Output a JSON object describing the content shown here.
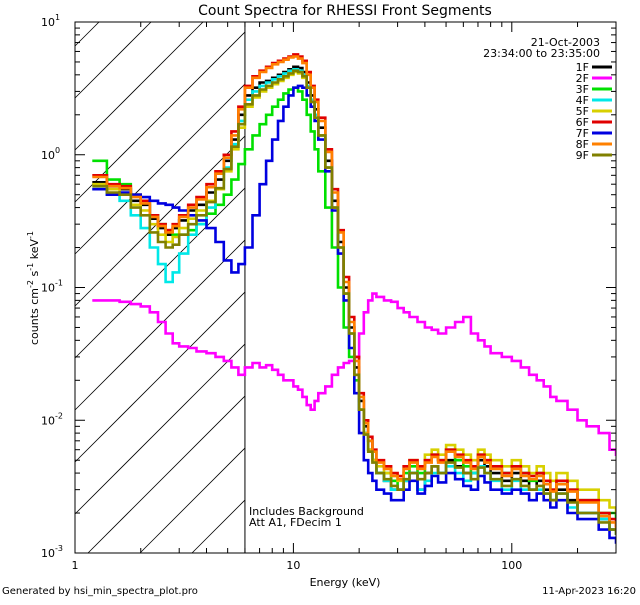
{
  "chart_data": {
    "type": "line",
    "title": "Count Spectra for RHESSI Front Segments",
    "xlabel": "Energy (keV)",
    "ylabel_base": "counts cm",
    "ylabel_exp1": "-2",
    "ylabel_mid": " s",
    "ylabel_exp2": "-1",
    "ylabel_end": " keV",
    "ylabel_exp3": "-1",
    "xscale": "log",
    "yscale": "log",
    "xlim": [
      1,
      300
    ],
    "ylim": [
      0.001,
      10
    ],
    "x_tick_labels": [
      {
        "value": 1,
        "label": "1"
      },
      {
        "value": 10,
        "label": "10"
      },
      {
        "value": 100,
        "label": "100"
      }
    ],
    "y_tick_labels": [
      {
        "value": 0.001,
        "base": "10",
        "exp": "-3"
      },
      {
        "value": 0.01,
        "base": "10",
        "exp": "-2"
      },
      {
        "value": 0.1,
        "base": "10",
        "exp": "-1"
      },
      {
        "value": 1,
        "base": "10",
        "exp": "0"
      },
      {
        "value": 10,
        "base": "10",
        "exp": "1"
      }
    ],
    "header_lines": [
      "21-Oct-2003",
      "23:34:00 to 23:35:00"
    ],
    "annotations": [
      "Includes Background",
      "Att A1, FDecim 1"
    ],
    "shaded_region": {
      "x_from": 1,
      "x_to": 6,
      "style": "diagonal hatch"
    },
    "vertical_line_x": 6,
    "legend_position": "top-right",
    "series": [
      {
        "name": "1F",
        "color": "#000000"
      },
      {
        "name": "2F",
        "color": "#ff00ff"
      },
      {
        "name": "3F",
        "color": "#00e000"
      },
      {
        "name": "4F",
        "color": "#00e8e8"
      },
      {
        "name": "5F",
        "color": "#d8d000"
      },
      {
        "name": "6F",
        "color": "#e00000"
      },
      {
        "name": "7F",
        "color": "#0000e0"
      },
      {
        "name": "8F",
        "color": "#ff8000"
      },
      {
        "name": "9F",
        "color": "#808000"
      }
    ],
    "energy_bins_keV": [
      1.2,
      1.4,
      1.6,
      1.8,
      2.0,
      2.2,
      2.4,
      2.6,
      2.8,
      3.0,
      3.3,
      3.6,
      4.0,
      4.4,
      4.8,
      5.2,
      5.6,
      6.0,
      6.5,
      7.0,
      7.5,
      8.0,
      8.5,
      9.0,
      9.5,
      10,
      10.5,
      11,
      11.5,
      12,
      12.5,
      13,
      14,
      15,
      16,
      17,
      18,
      19,
      20,
      21,
      22,
      23,
      24,
      26,
      28,
      30,
      32,
      34,
      37,
      40,
      43,
      46,
      50,
      55,
      60,
      65,
      70,
      75,
      80,
      90,
      100,
      110,
      120,
      130,
      140,
      150,
      160,
      180,
      200,
      220,
      250,
      280,
      300
    ],
    "series_values": {
      "1F": [
        0.62,
        0.55,
        0.55,
        0.45,
        0.42,
        0.33,
        0.28,
        0.25,
        0.28,
        0.32,
        0.38,
        0.42,
        0.52,
        0.65,
        0.9,
        1.3,
        2.0,
        2.8,
        3.2,
        3.5,
        3.6,
        3.8,
        4.0,
        4.2,
        4.4,
        4.6,
        4.5,
        4.2,
        3.5,
        2.8,
        2.2,
        1.6,
        0.9,
        0.45,
        0.22,
        0.1,
        0.05,
        0.025,
        0.014,
        0.009,
        0.007,
        0.005,
        0.004,
        0.0035,
        0.003,
        0.003,
        0.0035,
        0.004,
        0.003,
        0.004,
        0.0045,
        0.004,
        0.005,
        0.0045,
        0.004,
        0.004,
        0.005,
        0.0045,
        0.004,
        0.0035,
        0.004,
        0.0035,
        0.003,
        0.0035,
        0.003,
        0.0025,
        0.003,
        0.0025,
        0.002,
        0.002,
        0.0018,
        0.0015,
        0.0015
      ],
      "2F": [
        0.08,
        0.08,
        0.078,
        0.075,
        0.072,
        0.065,
        0.055,
        0.045,
        0.038,
        0.036,
        0.035,
        0.033,
        0.032,
        0.03,
        0.028,
        0.025,
        0.022,
        0.025,
        0.027,
        0.025,
        0.026,
        0.024,
        0.022,
        0.02,
        0.02,
        0.018,
        0.017,
        0.015,
        0.013,
        0.012,
        0.014,
        0.016,
        0.018,
        0.022,
        0.025,
        0.027,
        0.028,
        0.03,
        0.045,
        0.065,
        0.08,
        0.09,
        0.085,
        0.08,
        0.078,
        0.07,
        0.065,
        0.06,
        0.055,
        0.05,
        0.048,
        0.045,
        0.05,
        0.055,
        0.06,
        0.045,
        0.04,
        0.036,
        0.032,
        0.03,
        0.028,
        0.025,
        0.022,
        0.02,
        0.018,
        0.015,
        0.014,
        0.012,
        0.01,
        0.009,
        0.008,
        0.006,
        0.0055
      ],
      "3F": [
        0.9,
        0.65,
        0.6,
        0.5,
        0.45,
        0.35,
        0.3,
        0.27,
        0.25,
        0.25,
        0.27,
        0.3,
        0.36,
        0.42,
        0.5,
        0.65,
        0.85,
        1.1,
        1.4,
        1.7,
        2.0,
        2.3,
        2.6,
        2.9,
        3.1,
        3.2,
        3.0,
        2.6,
        2.0,
        1.5,
        1.1,
        0.75,
        0.4,
        0.2,
        0.1,
        0.05,
        0.03,
        0.02,
        0.012,
        0.008,
        0.006,
        0.005,
        0.004,
        0.004,
        0.0035,
        0.003,
        0.004,
        0.0045,
        0.004,
        0.005,
        0.0055,
        0.005,
        0.006,
        0.005,
        0.0045,
        0.004,
        0.0055,
        0.005,
        0.0045,
        0.004,
        0.0045,
        0.004,
        0.0035,
        0.004,
        0.0035,
        0.003,
        0.0035,
        0.003,
        0.0025,
        0.0025,
        0.002,
        0.002,
        0.0018
      ],
      "4F": [
        0.55,
        0.5,
        0.45,
        0.35,
        0.28,
        0.2,
        0.15,
        0.11,
        0.13,
        0.18,
        0.25,
        0.3,
        0.4,
        0.55,
        0.8,
        1.2,
        1.8,
        2.6,
        3.0,
        3.3,
        3.5,
        3.7,
        3.9,
        4.1,
        4.3,
        4.4,
        4.3,
        4.0,
        3.3,
        2.6,
        2.0,
        1.4,
        0.8,
        0.4,
        0.2,
        0.09,
        0.045,
        0.022,
        0.012,
        0.008,
        0.006,
        0.005,
        0.004,
        0.0035,
        0.003,
        0.003,
        0.0035,
        0.004,
        0.003,
        0.0035,
        0.004,
        0.004,
        0.0045,
        0.004,
        0.0035,
        0.004,
        0.0045,
        0.004,
        0.0035,
        0.003,
        0.0035,
        0.003,
        0.003,
        0.003,
        0.0028,
        0.0025,
        0.0028,
        0.0022,
        0.002,
        0.002,
        0.0018,
        0.0015,
        0.0014
      ],
      "5F": [
        0.6,
        0.55,
        0.5,
        0.42,
        0.38,
        0.3,
        0.25,
        0.22,
        0.24,
        0.28,
        0.33,
        0.38,
        0.45,
        0.55,
        0.75,
        1.1,
        1.6,
        2.3,
        2.7,
        3.0,
        3.2,
        3.4,
        3.6,
        3.8,
        4.0,
        4.2,
        4.1,
        3.8,
        3.2,
        2.5,
        1.9,
        1.4,
        0.8,
        0.4,
        0.2,
        0.09,
        0.045,
        0.022,
        0.012,
        0.008,
        0.006,
        0.005,
        0.0045,
        0.004,
        0.0038,
        0.0035,
        0.0045,
        0.005,
        0.0045,
        0.0055,
        0.006,
        0.0055,
        0.0065,
        0.006,
        0.0055,
        0.005,
        0.006,
        0.0055,
        0.005,
        0.0045,
        0.005,
        0.0045,
        0.004,
        0.0045,
        0.004,
        0.0035,
        0.004,
        0.0035,
        0.003,
        0.003,
        0.0025,
        0.0022,
        0.002
      ],
      "6F": [
        0.7,
        0.6,
        0.58,
        0.5,
        0.45,
        0.35,
        0.3,
        0.27,
        0.3,
        0.35,
        0.42,
        0.48,
        0.6,
        0.75,
        1.0,
        1.5,
        2.3,
        3.3,
        3.9,
        4.3,
        4.6,
        4.9,
        5.1,
        5.3,
        5.5,
        5.7,
        5.5,
        5.1,
        4.2,
        3.3,
        2.6,
        1.9,
        1.1,
        0.55,
        0.27,
        0.12,
        0.06,
        0.03,
        0.016,
        0.01,
        0.0075,
        0.006,
        0.005,
        0.0045,
        0.004,
        0.0038,
        0.0045,
        0.005,
        0.0045,
        0.005,
        0.0055,
        0.005,
        0.006,
        0.0055,
        0.005,
        0.0045,
        0.0055,
        0.005,
        0.0045,
        0.004,
        0.0045,
        0.004,
        0.0038,
        0.004,
        0.0035,
        0.003,
        0.0035,
        0.003,
        0.0025,
        0.0025,
        0.002,
        0.0018,
        0.0016
      ],
      "7F": [
        0.55,
        0.5,
        0.52,
        0.5,
        0.48,
        0.45,
        0.43,
        0.42,
        0.4,
        0.38,
        0.35,
        0.32,
        0.28,
        0.22,
        0.16,
        0.13,
        0.15,
        0.2,
        0.35,
        0.6,
        0.9,
        1.3,
        1.8,
        2.3,
        2.8,
        3.2,
        3.3,
        3.2,
        2.8,
        2.3,
        1.8,
        1.3,
        0.75,
        0.38,
        0.18,
        0.08,
        0.035,
        0.016,
        0.008,
        0.005,
        0.004,
        0.0035,
        0.003,
        0.0028,
        0.0025,
        0.0025,
        0.003,
        0.0035,
        0.0028,
        0.0032,
        0.0038,
        0.0034,
        0.004,
        0.0036,
        0.0032,
        0.003,
        0.0038,
        0.0034,
        0.003,
        0.0028,
        0.003,
        0.0028,
        0.0025,
        0.0028,
        0.0025,
        0.0022,
        0.0025,
        0.002,
        0.0018,
        0.0018,
        0.0015,
        0.0013,
        0.0012
      ],
      "8F": [
        0.68,
        0.58,
        0.56,
        0.48,
        0.43,
        0.34,
        0.29,
        0.26,
        0.29,
        0.34,
        0.4,
        0.46,
        0.57,
        0.72,
        0.95,
        1.4,
        2.2,
        3.2,
        3.8,
        4.2,
        4.5,
        4.8,
        5.0,
        5.2,
        5.4,
        5.5,
        5.3,
        4.9,
        4.0,
        3.2,
        2.5,
        1.8,
        1.05,
        0.52,
        0.26,
        0.11,
        0.055,
        0.028,
        0.015,
        0.0095,
        0.007,
        0.0058,
        0.0048,
        0.0043,
        0.0038,
        0.0036,
        0.0043,
        0.0048,
        0.0043,
        0.0048,
        0.0053,
        0.0048,
        0.0058,
        0.0053,
        0.0048,
        0.0043,
        0.0053,
        0.0048,
        0.0043,
        0.0038,
        0.0043,
        0.0038,
        0.0036,
        0.0038,
        0.0033,
        0.0029,
        0.0033,
        0.0029,
        0.0024,
        0.0024,
        0.0019,
        0.0017,
        0.0015
      ],
      "9F": [
        0.58,
        0.52,
        0.5,
        0.4,
        0.35,
        0.26,
        0.22,
        0.2,
        0.21,
        0.25,
        0.3,
        0.35,
        0.44,
        0.56,
        0.78,
        1.15,
        1.7,
        2.4,
        2.8,
        3.1,
        3.3,
        3.5,
        3.7,
        3.9,
        4.1,
        4.3,
        4.2,
        3.9,
        3.2,
        2.5,
        1.9,
        1.4,
        0.8,
        0.4,
        0.2,
        0.09,
        0.045,
        0.022,
        0.012,
        0.0078,
        0.0058,
        0.0048,
        0.004,
        0.0036,
        0.0032,
        0.003,
        0.0036,
        0.004,
        0.0036,
        0.004,
        0.0045,
        0.004,
        0.0048,
        0.0044,
        0.004,
        0.0036,
        0.0044,
        0.004,
        0.0036,
        0.0032,
        0.0036,
        0.0032,
        0.003,
        0.0032,
        0.0028,
        0.0025,
        0.0028,
        0.0024,
        0.002,
        0.002,
        0.0017,
        0.0015,
        0.0014
      ]
    }
  },
  "footer": {
    "generated_by": "Generated by hsi_min_spectra_plot.pro",
    "date": "11-Apr-2023 16:20"
  }
}
